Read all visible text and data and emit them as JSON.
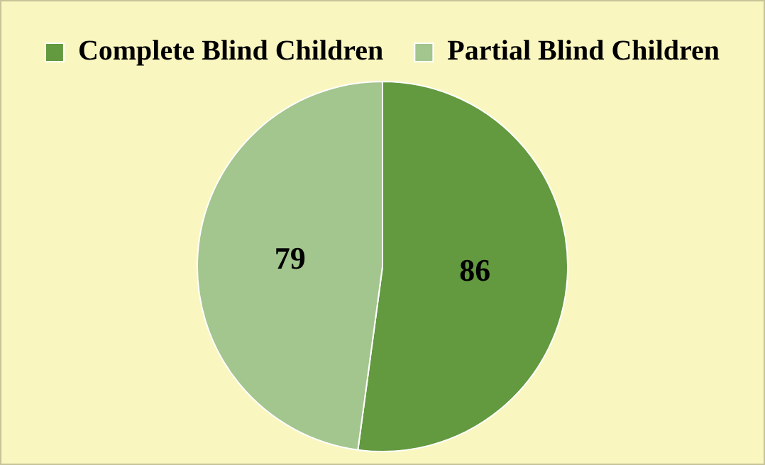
{
  "chart_data": {
    "type": "pie",
    "categories": [
      "Complete Blind Children",
      "Partial Blind Children"
    ],
    "values": [
      86,
      79
    ],
    "colors": [
      "#63993f",
      "#a3c58e"
    ],
    "data_labels": true,
    "legend": "top"
  }
}
